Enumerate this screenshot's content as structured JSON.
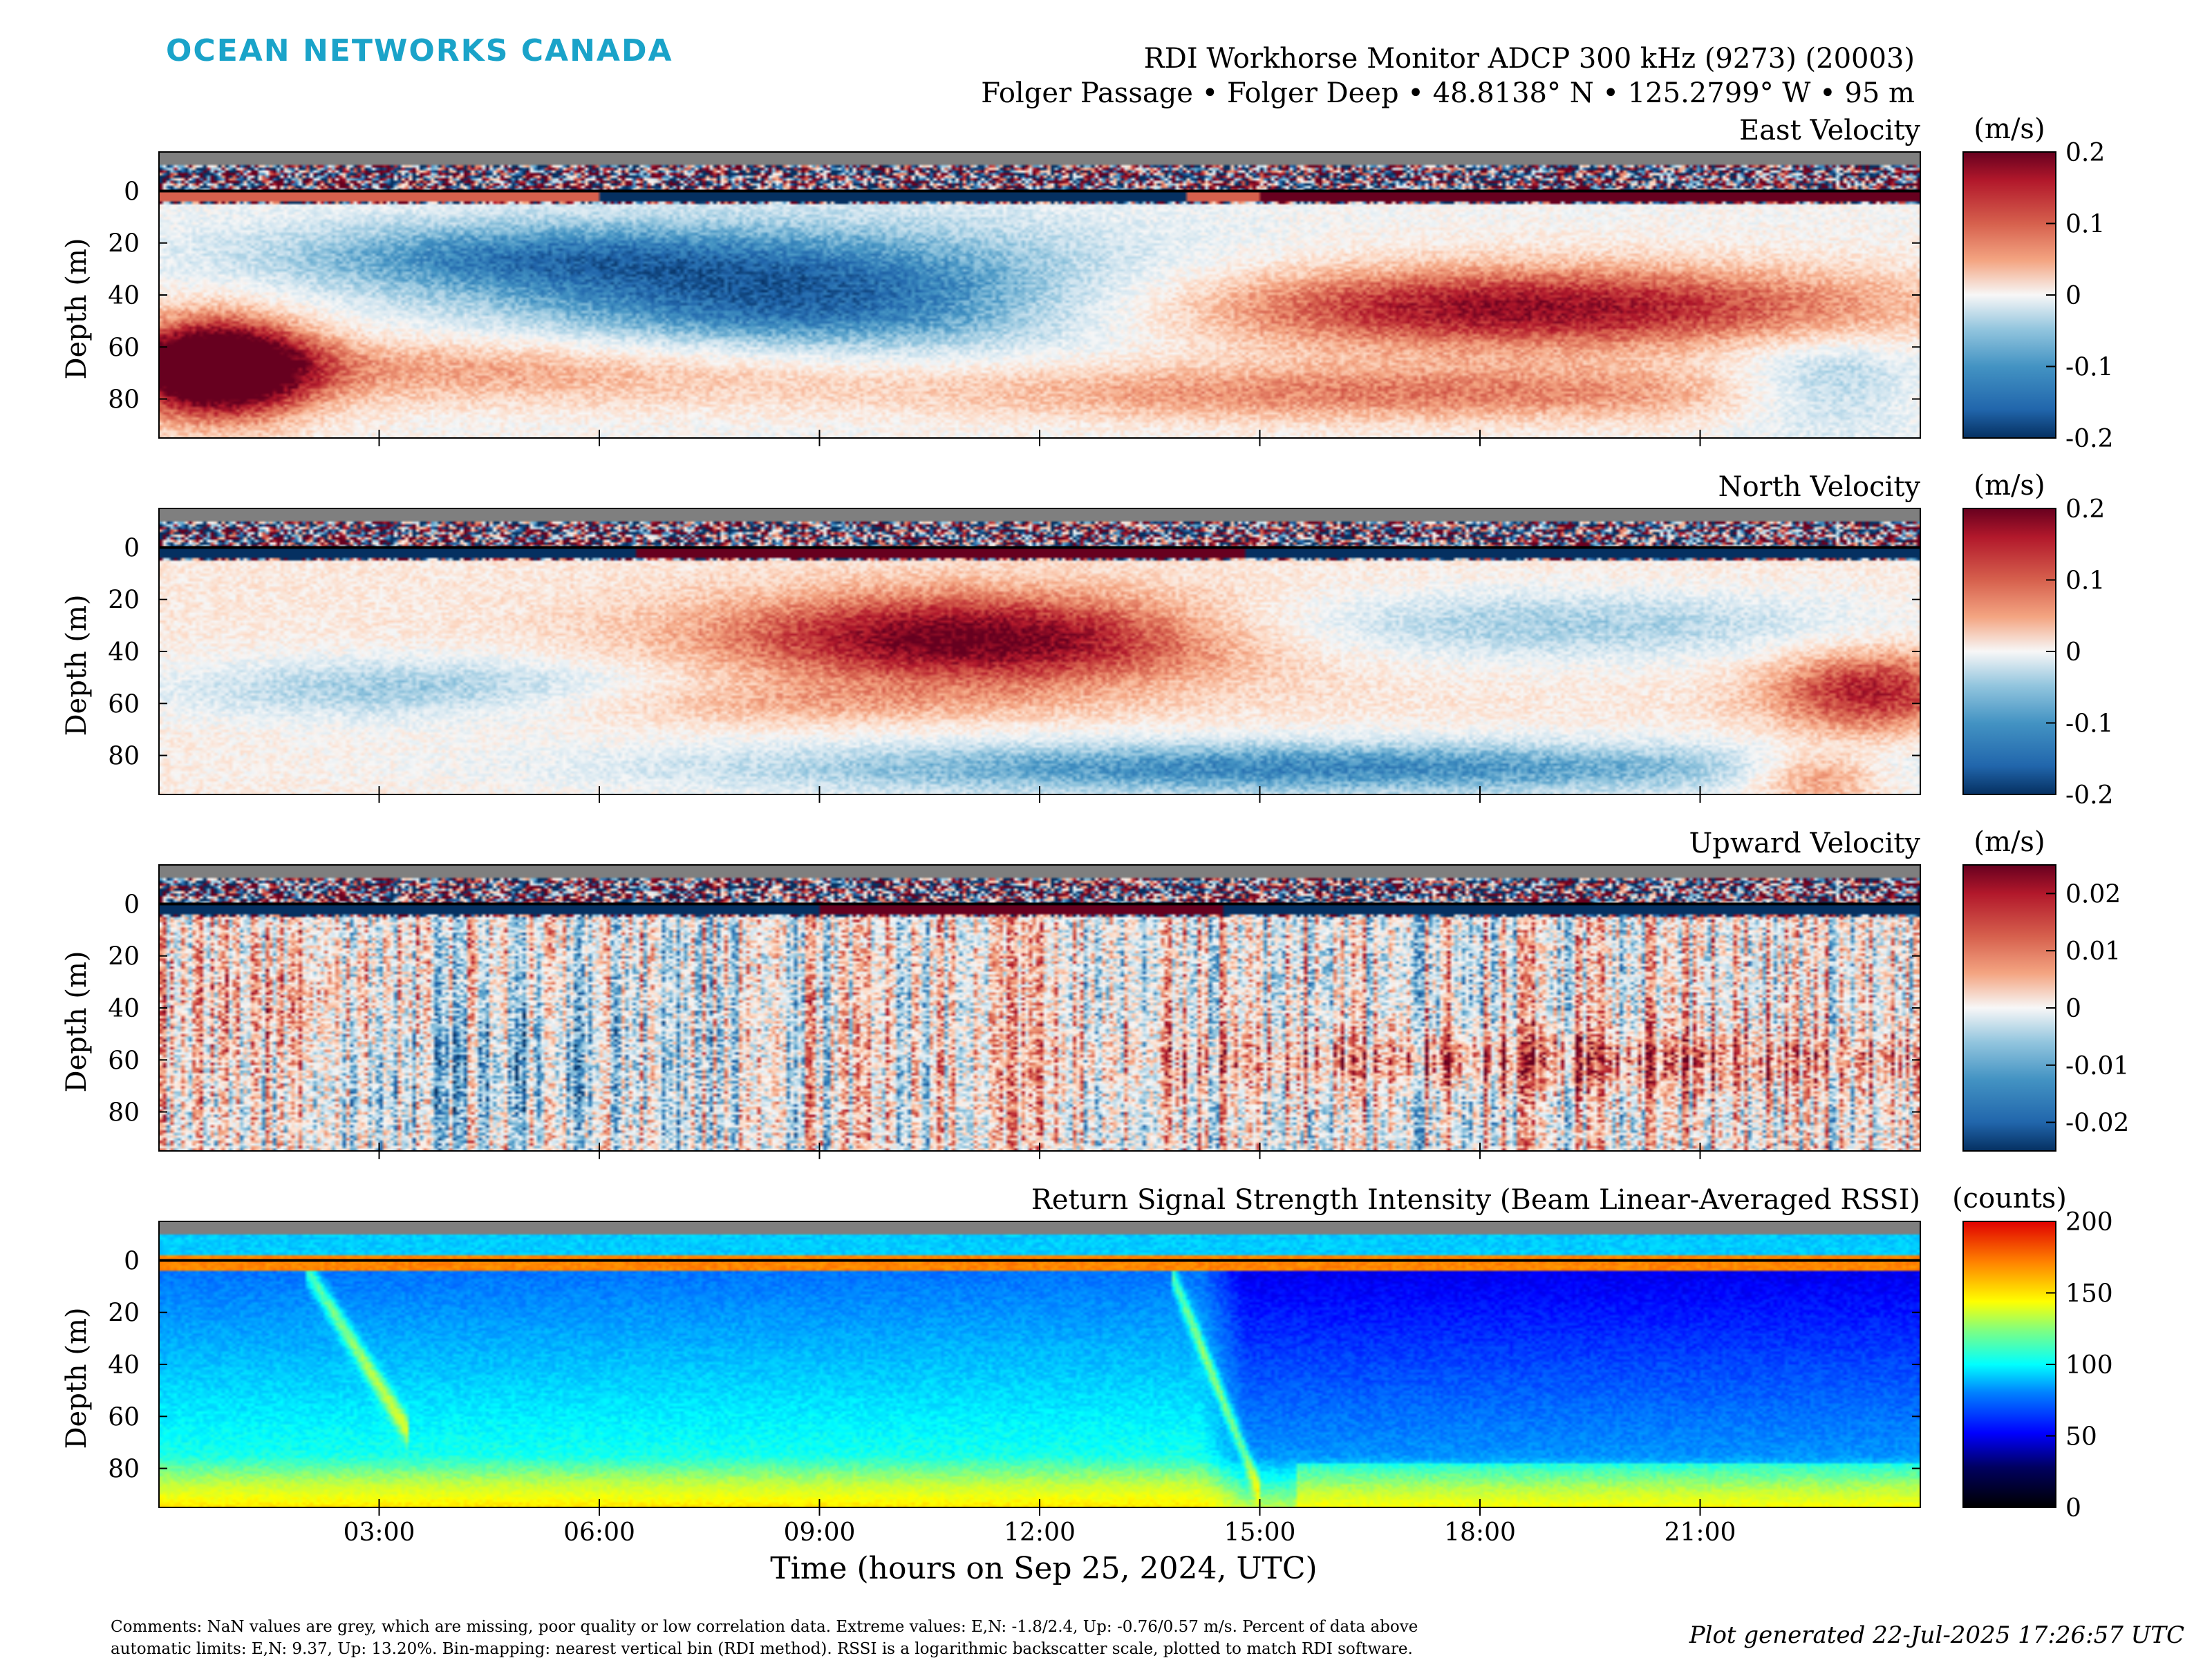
{
  "header": {
    "logo_text": "OCEAN NETWORKS CANADA",
    "instrument": "RDI Workhorse Monitor ADCP 300 kHz (9273) (20003)",
    "location": "Folger Passage • Folger Deep • 48.8138° N • 125.2799° W • 95 m"
  },
  "colors": {
    "logo": "#1aa3c9",
    "nan_grey": "#7f7f7f",
    "diverging_pos": "#67001f",
    "diverging_neg": "#053061"
  },
  "footer": {
    "comments_line1": "Comments: NaN values are grey, which are missing, poor quality or low correlation data. Extreme values: E,N: -1.8/2.4, Up: -0.76/0.57 m/s. Percent of data above",
    "comments_line2": "automatic limits: E,N: 9.37, Up: 13.20%. Bin-mapping: nearest vertical bin (RDI method). RSSI is a logarithmic backscatter scale, plotted to match RDI software.",
    "generated": "Plot generated 22-Jul-2025 17:26:57 UTC"
  },
  "chart_data": [
    {
      "type": "heatmap",
      "title": "East Velocity",
      "ylabel": "Depth (m)",
      "yticks": [
        "0",
        "20",
        "40",
        "60",
        "80"
      ],
      "ylim": [
        -15,
        95
      ],
      "xlim_hours": [
        0,
        24
      ],
      "colorbar": {
        "unit": "(m/s)",
        "ticks": [
          "0.2",
          "0.1",
          "0",
          "-0.1",
          "-0.2"
        ],
        "range": [
          -0.2,
          0.2
        ],
        "colormap": "RdBu_r"
      }
    },
    {
      "type": "heatmap",
      "title": "North Velocity",
      "ylabel": "Depth (m)",
      "yticks": [
        "0",
        "20",
        "40",
        "60",
        "80"
      ],
      "ylim": [
        -15,
        95
      ],
      "xlim_hours": [
        0,
        24
      ],
      "colorbar": {
        "unit": "(m/s)",
        "ticks": [
          "0.2",
          "0.1",
          "0",
          "-0.1",
          "-0.2"
        ],
        "range": [
          -0.2,
          0.2
        ],
        "colormap": "RdBu_r"
      }
    },
    {
      "type": "heatmap",
      "title": "Upward Velocity",
      "ylabel": "Depth (m)",
      "yticks": [
        "0",
        "20",
        "40",
        "60",
        "80"
      ],
      "ylim": [
        -15,
        95
      ],
      "xlim_hours": [
        0,
        24
      ],
      "colorbar": {
        "unit": "(m/s)",
        "ticks": [
          "0.02",
          "0.01",
          "0",
          "-0.01",
          "-0.02"
        ],
        "range": [
          -0.025,
          0.025
        ],
        "colormap": "RdBu_r"
      }
    },
    {
      "type": "heatmap",
      "title": "Return Signal Strength Intensity (Beam Linear-Averaged RSSI)",
      "ylabel": "Depth (m)",
      "yticks": [
        "0",
        "20",
        "40",
        "60",
        "80"
      ],
      "ylim": [
        -15,
        95
      ],
      "xlim_hours": [
        0,
        24
      ],
      "xticks": [
        "03:00",
        "06:00",
        "09:00",
        "12:00",
        "15:00",
        "18:00",
        "21:00"
      ],
      "xlabel": "Time (hours on Sep 25, 2024, UTC)",
      "colorbar": {
        "unit": "(counts)",
        "ticks": [
          "200",
          "150",
          "100",
          "50",
          "0"
        ],
        "range": [
          0,
          200
        ],
        "colormap": "jet"
      }
    }
  ]
}
